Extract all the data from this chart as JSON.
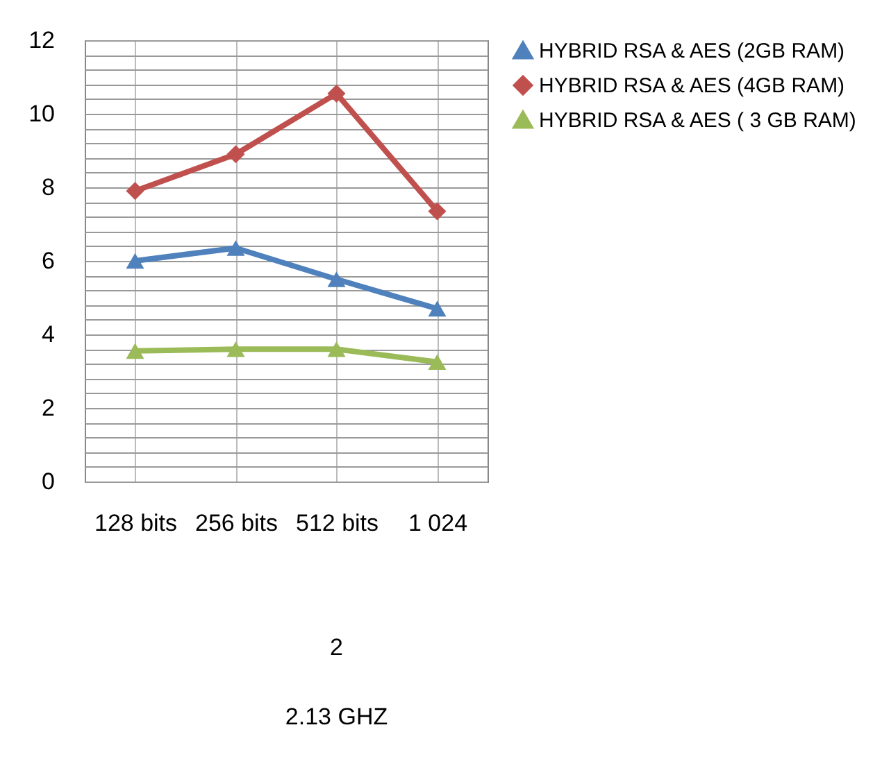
{
  "chart_data": {
    "type": "line",
    "categories": [
      "128 bits",
      "256 bits",
      "512 bits",
      "1 024"
    ],
    "series": [
      {
        "name": "HYBRID RSA & AES  (2GB RAM)",
        "color": "#4f81bd",
        "marker": "triangle",
        "values": [
          6.0,
          6.35,
          5.5,
          4.7
        ]
      },
      {
        "name": "HYBRID RSA & AES  (4GB RAM)",
        "color": "#c0504d",
        "marker": "diamond",
        "values": [
          7.9,
          8.9,
          10.55,
          7.35
        ]
      },
      {
        "name": "HYBRID RSA & AES ( 3 GB RAM)",
        "color": "#9bbb59",
        "marker": "triangle",
        "values": [
          3.55,
          3.6,
          3.6,
          3.25
        ]
      }
    ],
    "ylim": [
      0,
      12
    ],
    "yticks": [
      0,
      {
        "value": 0.4,
        "label": null
      },
      {
        "value": 0.8,
        "label": null
      },
      {
        "value": 1.2,
        "label": null
      },
      {
        "value": 1.6,
        "label": null
      },
      2,
      {
        "value": 2.4,
        "label": null
      },
      {
        "value": 2.8,
        "label": null
      },
      {
        "value": 3.2,
        "label": null
      },
      {
        "value": 3.6,
        "label": null
      },
      4,
      {
        "value": 4.4,
        "label": null
      },
      {
        "value": 4.8,
        "label": null
      },
      {
        "value": 5.2,
        "label": null
      },
      {
        "value": 5.6,
        "label": null
      },
      6,
      {
        "value": 6.4,
        "label": null
      },
      {
        "value": 6.8,
        "label": null
      },
      {
        "value": 7.2,
        "label": null
      },
      {
        "value": 7.6,
        "label": null
      },
      8,
      {
        "value": 8.4,
        "label": null
      },
      {
        "value": 8.8,
        "label": null
      },
      {
        "value": 9.2,
        "label": null
      },
      {
        "value": 9.6,
        "label": null
      },
      10,
      {
        "value": 10.4,
        "label": null
      },
      {
        "value": 10.8,
        "label": null
      },
      {
        "value": 11.2,
        "label": null
      },
      {
        "value": 11.6,
        "label": null
      },
      12
    ],
    "annotations": [
      "2",
      "2.13 GHZ"
    ],
    "grid": true,
    "legend": "right"
  }
}
